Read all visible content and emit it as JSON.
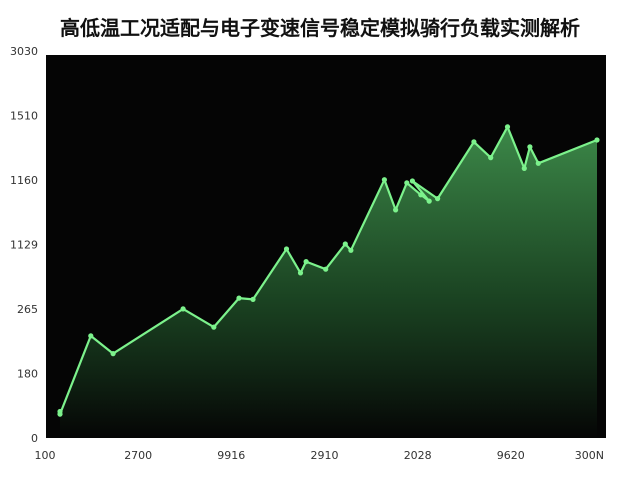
{
  "chart_data": {
    "type": "area",
    "title": "高低温工况适配与电子变速信号稳定模拟骑行负载实测解析",
    "xlabel": "",
    "ylabel": "",
    "x_tick_labels": [
      "100",
      "2700",
      "9916",
      "2910",
      "2028",
      "9620",
      "300N"
    ],
    "y_tick_labels": [
      "0",
      "180",
      "265",
      "1129",
      "1160",
      "1510",
      "3030"
    ],
    "grid": false,
    "colors": {
      "background": "#050505",
      "line": "#7cf28c",
      "fill_top": "#3f8f4c",
      "fill_bottom": "#050505"
    },
    "series": [
      {
        "values": [
          {
            "x": 0.0,
            "y": 0.42
          },
          {
            "x": 0.0,
            "y": 0.38
          },
          {
            "x": 0.55,
            "y": 1.62
          },
          {
            "x": 0.95,
            "y": 1.34
          },
          {
            "x": 2.2,
            "y": 2.05
          },
          {
            "x": 2.75,
            "y": 1.76
          },
          {
            "x": 3.2,
            "y": 2.22
          },
          {
            "x": 3.45,
            "y": 2.2
          },
          {
            "x": 4.05,
            "y": 3.0
          },
          {
            "x": 4.3,
            "y": 2.62
          },
          {
            "x": 4.4,
            "y": 2.8
          },
          {
            "x": 4.75,
            "y": 2.68
          },
          {
            "x": 5.1,
            "y": 3.08
          },
          {
            "x": 5.2,
            "y": 2.98
          },
          {
            "x": 5.8,
            "y": 4.1
          },
          {
            "x": 6.0,
            "y": 3.62
          },
          {
            "x": 6.2,
            "y": 4.05
          },
          {
            "x": 6.45,
            "y": 3.86
          },
          {
            "x": 6.6,
            "y": 3.76
          },
          {
            "x": 6.3,
            "y": 4.08
          },
          {
            "x": 6.75,
            "y": 3.8
          },
          {
            "x": 7.4,
            "y": 4.7
          },
          {
            "x": 7.7,
            "y": 4.45
          },
          {
            "x": 8.0,
            "y": 4.94
          },
          {
            "x": 8.3,
            "y": 4.28
          },
          {
            "x": 8.4,
            "y": 4.62
          },
          {
            "x": 8.55,
            "y": 4.36
          },
          {
            "x": 9.6,
            "y": 4.73
          }
        ]
      }
    ],
    "x_range": [
      0,
      9.6
    ],
    "y_range": [
      0,
      6
    ]
  }
}
